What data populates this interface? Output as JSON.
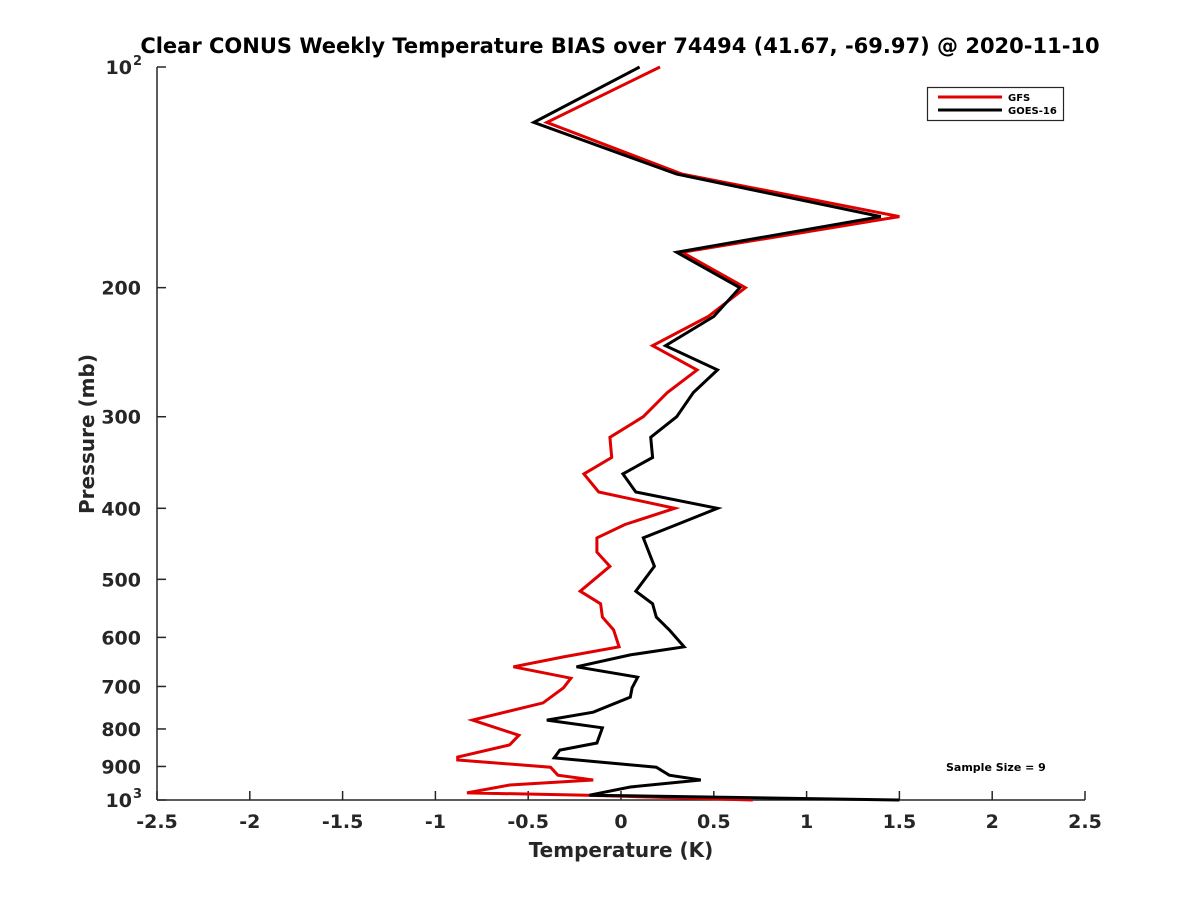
{
  "chart_data": {
    "type": "line",
    "title": "Clear CONUS Weekly Temperature BIAS over 74494 (41.67, -69.97) @ 2020-11-10",
    "xlabel": "Temperature (K)",
    "ylabel": "Pressure (mb)",
    "xlim": [
      -2.5,
      2.5
    ],
    "ylim": [
      100,
      1000
    ],
    "yscale": "log",
    "y_reversed": true,
    "xticks": [
      "-2.5",
      "-2",
      "-1.5",
      "-1",
      "-0.5",
      "0",
      "0.5",
      "1",
      "1.5",
      "2",
      "2.5"
    ],
    "xtick_values": [
      -2.5,
      -2,
      -1.5,
      -1,
      -0.5,
      0,
      0.5,
      1,
      1.5,
      2,
      2.5
    ],
    "ytick_values": [
      100,
      200,
      300,
      400,
      500,
      600,
      700,
      800,
      900,
      1000
    ],
    "ytick_labels": {
      "100": "10",
      "200": "200",
      "300": "300",
      "400": "400",
      "500": "500",
      "600": "600",
      "700": "700",
      "800": "800",
      "900": "900",
      "1000": "10"
    },
    "ytick_exponents": {
      "100": "2",
      "1000": "3"
    },
    "legend_position": "top-right",
    "annotation": "Sample Size = 9",
    "grid": false,
    "series": [
      {
        "name": "GFS",
        "color": "#e00000",
        "points": [
          [
            0.21,
            100
          ],
          [
            -0.4,
            119
          ],
          [
            0.33,
            140
          ],
          [
            1.5,
            160
          ],
          [
            0.33,
            179
          ],
          [
            0.67,
            200
          ],
          [
            0.47,
            219
          ],
          [
            0.17,
            240
          ],
          [
            0.41,
            259
          ],
          [
            0.25,
            278
          ],
          [
            0.12,
            300
          ],
          [
            -0.06,
            320
          ],
          [
            -0.05,
            341
          ],
          [
            -0.2,
            359
          ],
          [
            -0.12,
            380
          ],
          [
            0.29,
            400
          ],
          [
            0.02,
            421
          ],
          [
            -0.13,
            439
          ],
          [
            -0.13,
            459
          ],
          [
            -0.06,
            480
          ],
          [
            -0.22,
            519
          ],
          [
            -0.11,
            540
          ],
          [
            -0.1,
            563
          ],
          [
            -0.04,
            586
          ],
          [
            -0.01,
            618
          ],
          [
            -0.31,
            638
          ],
          [
            -0.58,
            658
          ],
          [
            -0.27,
            682
          ],
          [
            -0.31,
            703
          ],
          [
            -0.42,
            737
          ],
          [
            -0.8,
            778
          ],
          [
            -0.55,
            816
          ],
          [
            -0.6,
            841
          ],
          [
            -0.88,
            874
          ],
          [
            -0.88,
            882
          ],
          [
            -0.38,
            902
          ],
          [
            -0.34,
            925
          ],
          [
            -0.15,
            939
          ],
          [
            -0.6,
            954
          ],
          [
            -0.83,
            978
          ],
          [
            -0.18,
            985
          ],
          [
            0.71,
            1000
          ]
        ]
      },
      {
        "name": "GOES-16",
        "color": "#000000",
        "points": [
          [
            0.1,
            100
          ],
          [
            -0.47,
            119
          ],
          [
            0.3,
            140
          ],
          [
            1.4,
            160
          ],
          [
            0.3,
            179
          ],
          [
            0.64,
            200
          ],
          [
            0.5,
            219
          ],
          [
            0.24,
            240
          ],
          [
            0.52,
            259
          ],
          [
            0.39,
            278
          ],
          [
            0.3,
            300
          ],
          [
            0.16,
            320
          ],
          [
            0.17,
            341
          ],
          [
            0.01,
            359
          ],
          [
            0.08,
            380
          ],
          [
            0.52,
            400
          ],
          [
            0.3,
            421
          ],
          [
            0.12,
            439
          ],
          [
            0.18,
            480
          ],
          [
            0.08,
            519
          ],
          [
            0.17,
            540
          ],
          [
            0.19,
            563
          ],
          [
            0.26,
            586
          ],
          [
            0.34,
            618
          ],
          [
            0.05,
            634
          ],
          [
            -0.24,
            658
          ],
          [
            0.09,
            680
          ],
          [
            0.06,
            703
          ],
          [
            0.05,
            724
          ],
          [
            -0.15,
            759
          ],
          [
            -0.4,
            778
          ],
          [
            -0.1,
            797
          ],
          [
            -0.13,
            836
          ],
          [
            -0.33,
            855
          ],
          [
            -0.36,
            876
          ],
          [
            0.19,
            902
          ],
          [
            0.26,
            925
          ],
          [
            0.43,
            939
          ],
          [
            0.05,
            960
          ],
          [
            -0.17,
            985
          ],
          [
            1.5,
            1000
          ]
        ]
      }
    ]
  }
}
